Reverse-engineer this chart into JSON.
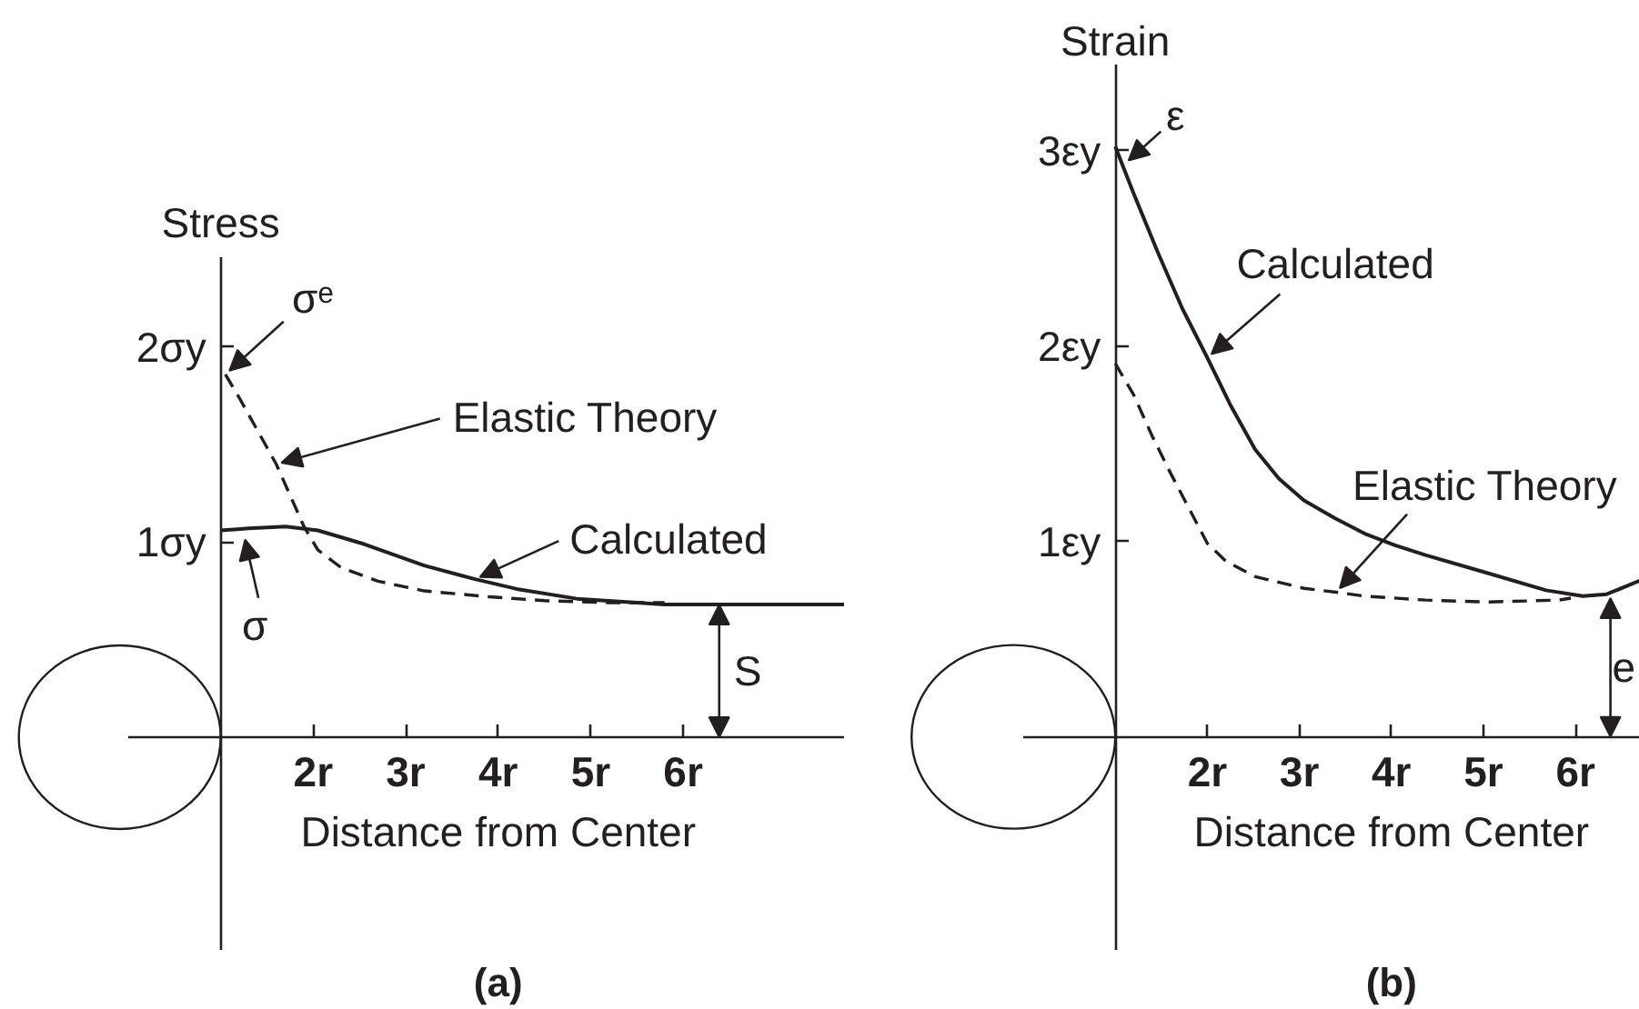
{
  "chart_data": [
    {
      "type": "line",
      "title": "(a)",
      "xlabel": "Distance from Center",
      "ylabel": "Stress",
      "xlim": [
        0,
        7.75
      ],
      "xticks": [
        {
          "value": 2,
          "label": "2r"
        },
        {
          "value": 3,
          "label": "3r"
        },
        {
          "value": 4,
          "label": "4r"
        },
        {
          "value": 5,
          "label": "5r"
        },
        {
          "value": 6,
          "label": "6r"
        }
      ],
      "ylim": [
        -1.09,
        2.46
      ],
      "yticks": [
        {
          "value": 1,
          "label": "1σy"
        },
        {
          "value": 2,
          "label": "2σy"
        }
      ],
      "grid": false,
      "series": [
        {
          "color": "#231f20",
          "line_style": "solid",
          "x": [
            1.0,
            1.3,
            1.7,
            2.05,
            2.55,
            3.2,
            3.75,
            4.2,
            4.85,
            5.5,
            5.8,
            6.5,
            7.75
          ],
          "values": [
            1.06,
            1.07,
            1.08,
            1.06,
            0.99,
            0.88,
            0.81,
            0.76,
            0.71,
            0.69,
            0.68,
            0.68,
            0.68
          ]
        },
        {
          "color": "#231f20",
          "line_style": "dashed",
          "x": [
            1.05,
            1.2,
            1.4,
            1.6,
            1.75,
            1.9,
            2.05,
            2.3,
            2.7,
            3.2,
            3.9,
            4.5,
            5.2,
            5.8
          ],
          "values": [
            1.86,
            1.74,
            1.57,
            1.4,
            1.24,
            1.08,
            0.96,
            0.87,
            0.8,
            0.75,
            0.72,
            0.7,
            0.69,
            0.69
          ]
        }
      ],
      "annotations": [
        {
          "text": "σᵉ",
          "x": 1.05,
          "y": 1.86
        },
        {
          "text": "Elastic Theory",
          "x": 1.6,
          "y": 1.4
        },
        {
          "text": "Calculated",
          "x": 3.75,
          "y": 0.81
        },
        {
          "text": "σ",
          "x": 1.25,
          "y": 1.04
        },
        {
          "text": "S",
          "x": 6.39,
          "y": 0.68
        }
      ]
    },
    {
      "type": "line",
      "title": "(b)",
      "xlabel": "Distance from Center",
      "ylabel": "Strain",
      "xlim": [
        0,
        6.7
      ],
      "xticks": [
        {
          "value": 2,
          "label": "2r"
        },
        {
          "value": 3,
          "label": "3r"
        },
        {
          "value": 4,
          "label": "4r"
        },
        {
          "value": 5,
          "label": "5r"
        },
        {
          "value": 6,
          "label": "6r"
        }
      ],
      "ylim": [
        -1.09,
        3.44
      ],
      "yticks": [
        {
          "value": 1,
          "label": "1εy"
        },
        {
          "value": 2,
          "label": "2εy"
        },
        {
          "value": 3,
          "label": "3εy"
        }
      ],
      "grid": false,
      "series": [
        {
          "color": "#231f20",
          "line_style": "solid",
          "x": [
            1.0,
            1.2,
            1.47,
            1.73,
            2.0,
            2.26,
            2.52,
            2.78,
            3.05,
            3.38,
            3.71,
            4.04,
            4.37,
            5.03,
            5.68,
            6.08,
            6.34,
            6.6,
            6.7
          ],
          "values": [
            3.02,
            2.78,
            2.47,
            2.19,
            1.94,
            1.69,
            1.47,
            1.32,
            1.21,
            1.12,
            1.04,
            0.98,
            0.93,
            0.84,
            0.75,
            0.72,
            0.73,
            0.78,
            0.8
          ]
        },
        {
          "color": "#231f20",
          "line_style": "dashed",
          "x": [
            1.0,
            1.2,
            1.4,
            1.6,
            1.8,
            2.0,
            2.2,
            2.52,
            3.05,
            3.4,
            3.71,
            4.37,
            5.03,
            5.82,
            5.95
          ],
          "values": [
            1.91,
            1.75,
            1.54,
            1.35,
            1.17,
            0.99,
            0.9,
            0.82,
            0.76,
            0.74,
            0.72,
            0.7,
            0.69,
            0.7,
            0.71
          ]
        }
      ],
      "annotations": [
        {
          "text": "ε",
          "x": 1.1,
          "y": 2.93
        },
        {
          "text": "Calculated",
          "x": 2.0,
          "y": 1.94
        },
        {
          "text": "Elastic Theory",
          "x": 3.4,
          "y": 0.74
        },
        {
          "text": "e",
          "x": 6.38,
          "y": 0.71
        }
      ]
    }
  ]
}
